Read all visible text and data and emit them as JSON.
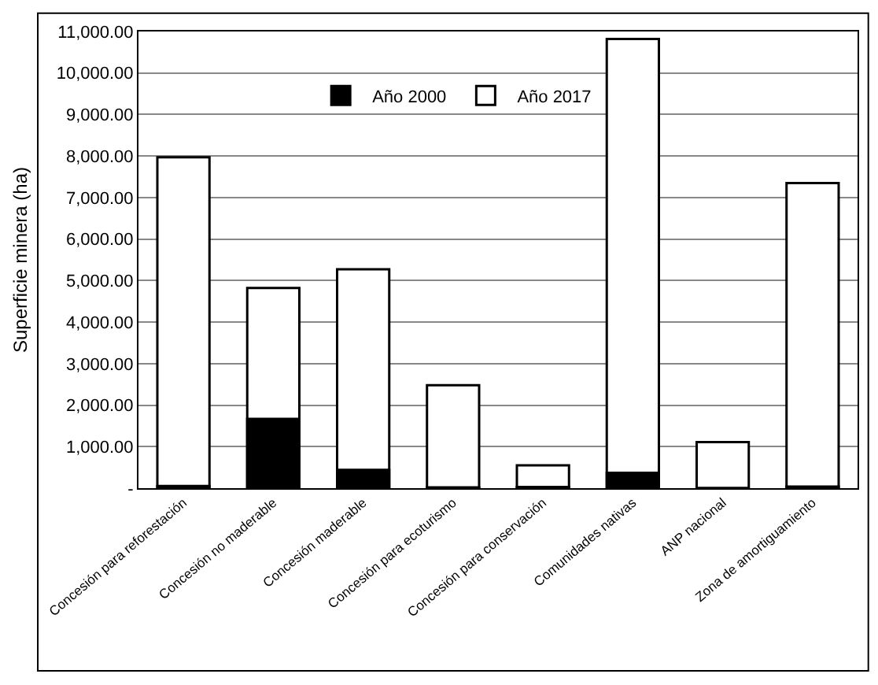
{
  "chart_data": {
    "type": "bar",
    "ylabel": "Superficie minera (ha)",
    "categories": [
      "Concesión para reforestación",
      "Concesión no maderable",
      "Concesión maderable",
      "Concesión para ecoturismo",
      "Concesión para conservación",
      "Comunidades nativas",
      "ANP nacional",
      "Zona de amortiguamiento"
    ],
    "series": [
      {
        "name": "Año 2017",
        "color": "#ffffff",
        "values": [
          7970,
          4820,
          5270,
          2480,
          550,
          10820,
          1110,
          7350
        ]
      },
      {
        "name": "Año 2000",
        "color": "#000000",
        "values": [
          50,
          1670,
          440,
          20,
          30,
          370,
          0,
          40
        ]
      }
    ],
    "ylim": [
      0,
      11000
    ],
    "yticks": [
      {
        "value": 0,
        "label": "-"
      },
      {
        "value": 1000,
        "label": "1,000.00"
      },
      {
        "value": 2000,
        "label": "2,000.00"
      },
      {
        "value": 3000,
        "label": "3,000.00"
      },
      {
        "value": 4000,
        "label": "4,000.00"
      },
      {
        "value": 5000,
        "label": "5,000.00"
      },
      {
        "value": 6000,
        "label": "6,000.00"
      },
      {
        "value": 7000,
        "label": "7,000.00"
      },
      {
        "value": 8000,
        "label": "8,000.00"
      },
      {
        "value": 9000,
        "label": "9,000.00"
      },
      {
        "value": 10000,
        "label": "10,000.00"
      },
      {
        "value": 11000,
        "label": "11,000.00"
      }
    ],
    "grid": "y",
    "legend": "top"
  }
}
